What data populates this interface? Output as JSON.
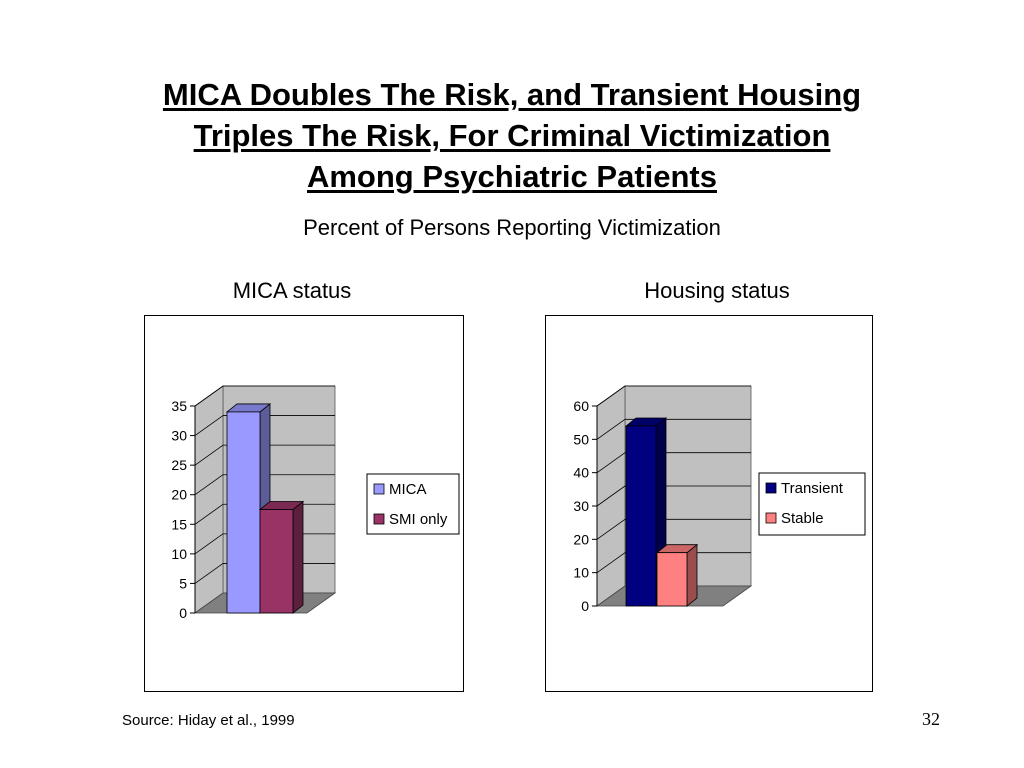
{
  "slide": {
    "title_lines": [
      "MICA Doubles The Risk, and Transient Housing",
      "Triples The Risk, For Criminal Victimization",
      "Among Psychiatric Patients"
    ],
    "subtitle": "Percent of Persons Reporting Victimization",
    "source": "Source: Hiday et al., 1999",
    "page_number": "32"
  },
  "chart_data": [
    {
      "type": "bar",
      "title": "MICA status",
      "categories": [
        "MICA",
        "SMI only"
      ],
      "values": [
        34,
        17.5
      ],
      "colors": [
        "#9999ff",
        "#993366"
      ],
      "ylim": [
        0,
        35
      ],
      "yticks": [
        0,
        5,
        10,
        15,
        20,
        25,
        30,
        35
      ],
      "legend": [
        "MICA",
        "SMI only"
      ],
      "legend_position": "right",
      "grid": true
    },
    {
      "type": "bar",
      "title": "Housing status",
      "categories": [
        "Transient",
        "Stable"
      ],
      "values": [
        54,
        16
      ],
      "colors": [
        "#000080",
        "#ff8080"
      ],
      "ylim": [
        0,
        60
      ],
      "yticks": [
        0,
        10,
        20,
        30,
        40,
        50,
        60
      ],
      "legend": [
        "Transient",
        "Stable"
      ],
      "legend_position": "right",
      "grid": true
    }
  ]
}
